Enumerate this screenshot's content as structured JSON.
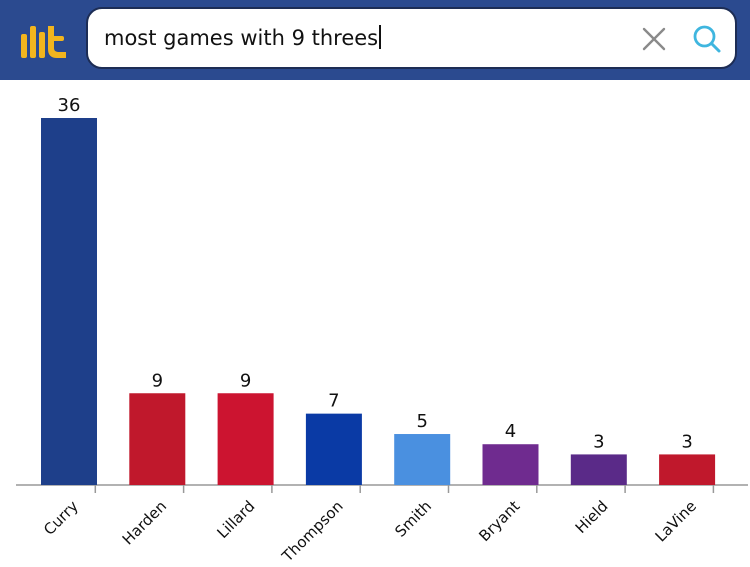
{
  "search": {
    "query": "most games with 9 threes"
  },
  "icons": {
    "logo": "logo-icon",
    "clear": "close-icon",
    "search": "search-icon"
  },
  "colors": {
    "header_bg": "#2b4a8f",
    "logo": "#f2b51e",
    "clear_icon": "#8a8a8a",
    "search_icon": "#3fb6df"
  },
  "chart_data": {
    "type": "bar",
    "title": "",
    "xlabel": "",
    "ylabel": "",
    "categories": [
      "Curry",
      "Harden",
      "Lillard",
      "Thompson",
      "Smith",
      "Bryant",
      "Hield",
      "LaVine"
    ],
    "values": [
      36,
      9,
      9,
      7,
      5,
      4,
      3,
      3
    ],
    "colors": [
      "#1e3f8a",
      "#c0182c",
      "#cc1430",
      "#0a3aa5",
      "#4a90e0",
      "#6f2b8f",
      "#5a2a88",
      "#c0182c"
    ],
    "ylim": [
      0,
      36
    ],
    "grid": false,
    "legend": "none"
  }
}
